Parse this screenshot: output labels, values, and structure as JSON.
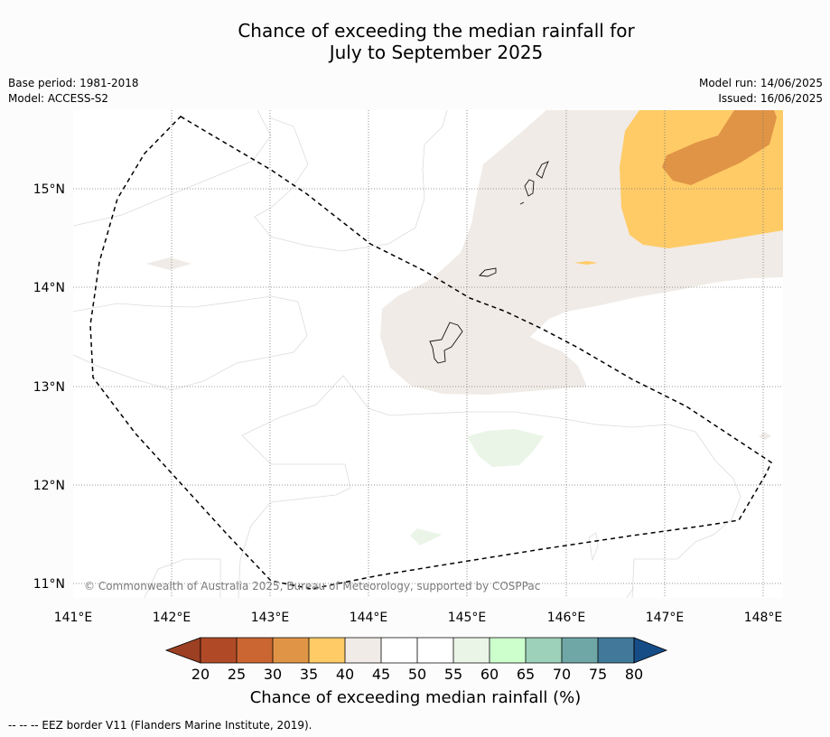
{
  "title_line1": "Chance of exceeding the median rainfall for",
  "title_line2": "July to September 2025",
  "meta_left": [
    "Base period: 1981-2018",
    "Model: ACCESS-S2"
  ],
  "meta_right": [
    "Model run: 14/06/2025",
    "Issued: 16/06/2025"
  ],
  "map": {
    "lon_ticks": [
      "141°E",
      "142°E",
      "143°E",
      "144°E",
      "145°E",
      "146°E",
      "147°E",
      "148°E"
    ],
    "lat_ticks": [
      "15°N",
      "14°N",
      "13°N",
      "12°N",
      "11°N"
    ],
    "copyright": "© Commonwealth of Australia 2025, Bureau of Meteorology, supported by COSPPac",
    "colors": {
      "c40_45": "#f0ebe6",
      "c35_40": "#ffcb67",
      "c30_35": "#e09446",
      "c55_60": "#eaf5e8"
    }
  },
  "colorbar": {
    "labels": [
      "20",
      "25",
      "30",
      "35",
      "40",
      "45",
      "50",
      "55",
      "60",
      "65",
      "70",
      "75",
      "80"
    ],
    "colors": [
      "#b04a26",
      "#cb6632",
      "#e09446",
      "#ffcb67",
      "#f0ebe6",
      "#ffffff",
      "#ffffff",
      "#eaf5e8",
      "#cdffcd",
      "#9dd1b9",
      "#6fa7a6",
      "#42799a"
    ],
    "under_color": "#9c3f22",
    "over_color": "#174d87",
    "title": "Chance of exceeding median rainfall (%)"
  },
  "footnote": "--  --  -- EEZ border V11 (Flanders Marine Institute, 2019)."
}
